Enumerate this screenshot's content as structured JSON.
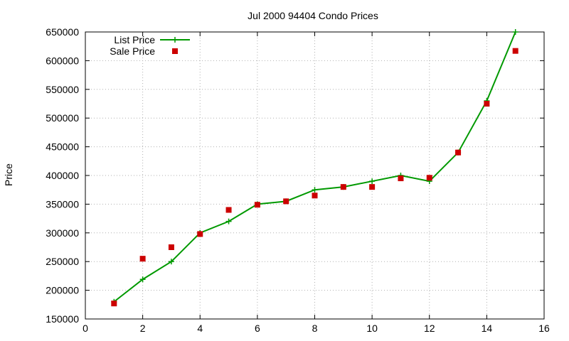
{
  "chart_data": {
    "type": "line",
    "title": "Jul 2000 94404 Condo Prices",
    "xlabel": "",
    "ylabel": "Price",
    "xlim": [
      0,
      16
    ],
    "ylim": [
      150000,
      650000
    ],
    "xticks": [
      0,
      2,
      4,
      6,
      8,
      10,
      12,
      14,
      16
    ],
    "yticks": [
      150000,
      200000,
      250000,
      300000,
      350000,
      400000,
      450000,
      500000,
      550000,
      600000,
      650000
    ],
    "grid": true,
    "legend_position": "top-left",
    "series": [
      {
        "name": "List Price",
        "style": "linespoints",
        "marker": "plus",
        "color": "#009900",
        "x": [
          1,
          2,
          3,
          4,
          5,
          6,
          7,
          8,
          9,
          10,
          11,
          12,
          13,
          14,
          15
        ],
        "y": [
          180000,
          219000,
          250000,
          300000,
          320000,
          350000,
          355000,
          375000,
          380000,
          390000,
          400000,
          390000,
          440000,
          530000,
          650000
        ]
      },
      {
        "name": "Sale Price",
        "style": "points",
        "marker": "square",
        "color": "#cc0000",
        "x": [
          1,
          2,
          3,
          4,
          5,
          6,
          7,
          8,
          9,
          10,
          11,
          12,
          13,
          14,
          15
        ],
        "y": [
          177000,
          255000,
          275000,
          298000,
          340000,
          349000,
          355000,
          365000,
          380000,
          380000,
          395000,
          396000,
          440000,
          525000,
          617000
        ]
      }
    ]
  }
}
